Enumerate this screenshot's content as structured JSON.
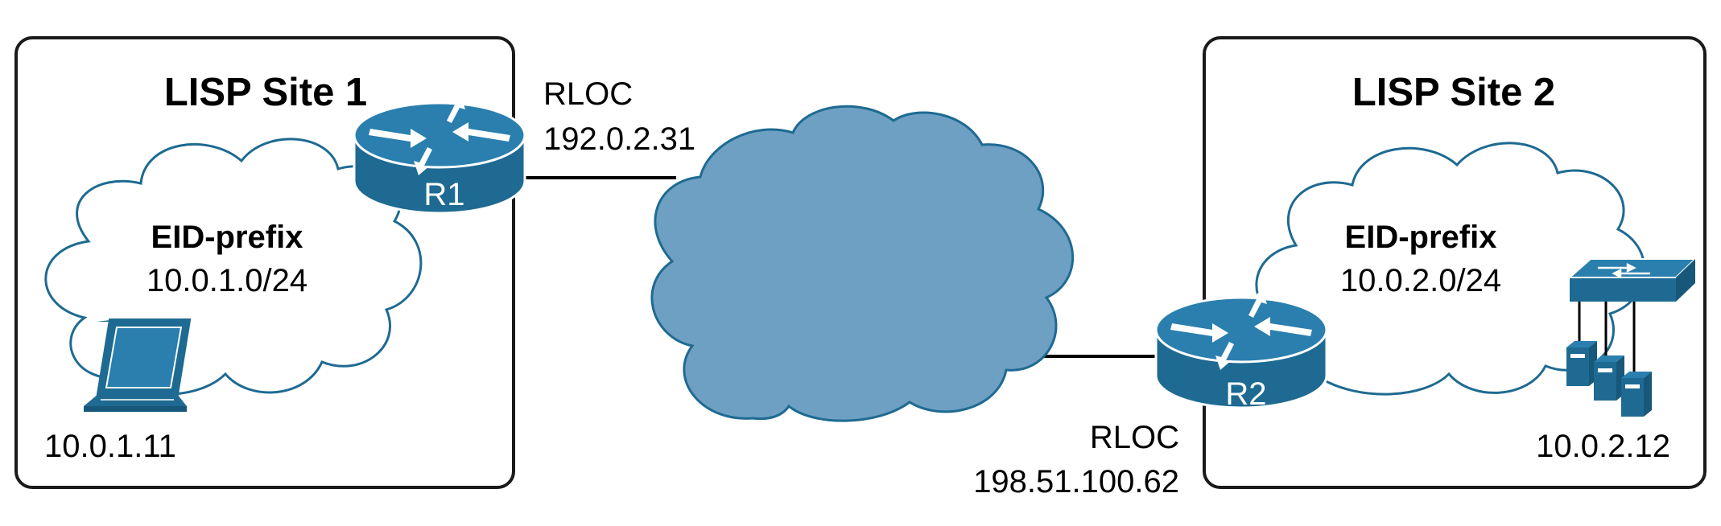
{
  "site1": {
    "title": "LISP Site 1",
    "eid_label": "EID-prefix",
    "eid_prefix": "10.0.1.0/24",
    "host_ip": "10.0.1.11",
    "host_icon": "laptop-icon"
  },
  "site2": {
    "title": "LISP Site 2",
    "eid_label": "EID-prefix",
    "eid_prefix": "10.0.2.0/24",
    "host_ip": "10.0.2.12",
    "host_icons": [
      "switch-icon",
      "server-icon"
    ]
  },
  "routers": {
    "r1": {
      "name": "R1",
      "rloc_label": "RLOC",
      "rloc_ip": "192.0.2.31"
    },
    "r2": {
      "name": "R2",
      "rloc_label": "RLOC",
      "rloc_ip": "198.51.100.62"
    }
  },
  "colors": {
    "device_blue": "#1e6a92",
    "device_top": "#2a7fae",
    "transport_cloud": "#6ea0c3",
    "site_cloud_stroke": "#1e6a92",
    "site_border": "#1a1a1a"
  }
}
